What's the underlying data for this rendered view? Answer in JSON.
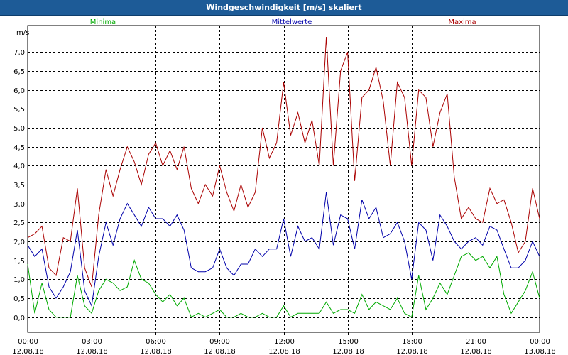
{
  "window": {
    "title": "Windgeschwindigkeit [m/s] skaliert"
  },
  "colors": {
    "background": "#ffffff",
    "titlebar": "#1d5b97",
    "grid": "#000000",
    "minima": "#00aa00",
    "mittelwerte": "#0000aa",
    "maxima": "#aa0000"
  },
  "chart_data": {
    "type": "line",
    "title": "Windgeschwindigkeit [m/s] skaliert",
    "ylabel": "m/s",
    "xlabel": "",
    "ylim": [
      -0.4,
      7.7
    ],
    "xlim": [
      0,
      24
    ],
    "y_ticks": [
      "0,0",
      "0,5",
      "1,0",
      "1,5",
      "2,0",
      "2,5",
      "3,0",
      "3,5",
      "4,0",
      "4,5",
      "5,0",
      "5,5",
      "6,0",
      "6,5",
      "7,0"
    ],
    "y_tick_values": [
      0,
      0.5,
      1,
      1.5,
      2,
      2.5,
      3,
      3.5,
      4,
      4.5,
      5,
      5.5,
      6,
      6.5,
      7
    ],
    "x_ticks": [
      {
        "time": "00:00",
        "date": "12.08.18"
      },
      {
        "time": "03:00",
        "date": "12.08.18"
      },
      {
        "time": "06:00",
        "date": "12.08.18"
      },
      {
        "time": "09:00",
        "date": "12.08.18"
      },
      {
        "time": "12:00",
        "date": "12.08.18"
      },
      {
        "time": "15:00",
        "date": "12.08.18"
      },
      {
        "time": "18:00",
        "date": "12.08.18"
      },
      {
        "time": "21:00",
        "date": "12.08.18"
      },
      {
        "time": "00:00",
        "date": "13.08.18"
      }
    ],
    "x_tick_hours": [
      0,
      3,
      6,
      9,
      12,
      15,
      18,
      21,
      24
    ],
    "grid": true,
    "legend": [
      "Minima",
      "Mittelwerte",
      "Maxima"
    ],
    "legend_position": "top",
    "x_unit": "hours",
    "series": [
      {
        "name": "Maxima",
        "color": "#aa0000",
        "x": [
          0,
          0.33,
          0.67,
          1,
          1.33,
          1.67,
          2,
          2.33,
          2.67,
          3,
          3.33,
          3.67,
          4,
          4.33,
          4.67,
          5,
          5.33,
          5.67,
          6,
          6.33,
          6.67,
          7,
          7.33,
          7.67,
          8,
          8.33,
          8.67,
          9,
          9.33,
          9.67,
          10,
          10.33,
          10.67,
          11,
          11.33,
          11.67,
          12,
          12.33,
          12.67,
          13,
          13.33,
          13.67,
          14,
          14.33,
          14.67,
          15,
          15.33,
          15.67,
          16,
          16.33,
          16.67,
          17,
          17.33,
          17.67,
          18,
          18.33,
          18.67,
          19,
          19.33,
          19.67,
          20,
          20.33,
          20.67,
          21,
          21.33,
          21.67,
          22,
          22.33,
          22.67,
          23,
          23.33,
          23.67,
          24
        ],
        "values": [
          2.1,
          2.2,
          2.4,
          1.3,
          1.1,
          2.1,
          2.0,
          3.4,
          1.3,
          0.8,
          2.7,
          3.9,
          3.2,
          3.9,
          4.5,
          4.1,
          3.5,
          4.3,
          4.6,
          4.0,
          4.4,
          3.9,
          4.5,
          3.4,
          3.0,
          3.5,
          3.2,
          4.0,
          3.3,
          2.8,
          3.5,
          2.9,
          3.3,
          5.0,
          4.2,
          4.6,
          6.2,
          4.8,
          5.4,
          4.6,
          5.2,
          4.0,
          7.4,
          4.0,
          6.5,
          7.0,
          3.6,
          5.8,
          6.0,
          6.6,
          5.7,
          4.0,
          6.2,
          5.8,
          4.0,
          6.0,
          5.8,
          4.5,
          5.4,
          5.9,
          3.7,
          2.6,
          2.9,
          2.6,
          2.5,
          3.4,
          3.0,
          3.1,
          2.5,
          1.7,
          2.0,
          3.4,
          2.6
        ]
      },
      {
        "name": "Mittelwerte",
        "color": "#0000aa",
        "x": [
          0,
          0.33,
          0.67,
          1,
          1.33,
          1.67,
          2,
          2.33,
          2.67,
          3,
          3.33,
          3.67,
          4,
          4.33,
          4.67,
          5,
          5.33,
          5.67,
          6,
          6.33,
          6.67,
          7,
          7.33,
          7.67,
          8,
          8.33,
          8.67,
          9,
          9.33,
          9.67,
          10,
          10.33,
          10.67,
          11,
          11.33,
          11.67,
          12,
          12.33,
          12.67,
          13,
          13.33,
          13.67,
          14,
          14.33,
          14.67,
          15,
          15.33,
          15.67,
          16,
          16.33,
          16.67,
          17,
          17.33,
          17.67,
          18,
          18.33,
          18.67,
          19,
          19.33,
          19.67,
          20,
          20.33,
          20.67,
          21,
          21.33,
          21.67,
          22,
          22.33,
          22.67,
          23,
          23.33,
          23.67,
          24
        ],
        "values": [
          1.9,
          1.6,
          1.8,
          0.8,
          0.5,
          0.8,
          1.2,
          2.3,
          0.7,
          0.3,
          1.6,
          2.5,
          1.9,
          2.6,
          3.0,
          2.7,
          2.4,
          2.9,
          2.6,
          2.6,
          2.4,
          2.7,
          2.3,
          1.3,
          1.2,
          1.2,
          1.3,
          1.8,
          1.3,
          1.1,
          1.4,
          1.4,
          1.8,
          1.6,
          1.8,
          1.8,
          2.6,
          1.6,
          2.4,
          2.0,
          2.1,
          1.8,
          3.3,
          1.9,
          2.7,
          2.6,
          1.8,
          3.1,
          2.6,
          2.9,
          2.1,
          2.2,
          2.5,
          2.0,
          1.0,
          2.5,
          2.3,
          1.5,
          2.7,
          2.4,
          2.0,
          1.8,
          2.0,
          2.1,
          1.9,
          2.4,
          2.3,
          1.8,
          1.3,
          1.3,
          1.5,
          2.0,
          1.6
        ]
      },
      {
        "name": "Minima",
        "color": "#00aa00",
        "x": [
          0,
          0.33,
          0.67,
          1,
          1.33,
          1.67,
          2,
          2.33,
          2.67,
          3,
          3.33,
          3.67,
          4,
          4.33,
          4.67,
          5,
          5.33,
          5.67,
          6,
          6.33,
          6.67,
          7,
          7.33,
          7.67,
          8,
          8.33,
          8.67,
          9,
          9.33,
          9.67,
          10,
          10.33,
          10.67,
          11,
          11.33,
          11.67,
          12,
          12.33,
          12.67,
          13,
          13.33,
          13.67,
          14,
          14.33,
          14.67,
          15,
          15.33,
          15.67,
          16,
          16.33,
          16.67,
          17,
          17.33,
          17.67,
          18,
          18.33,
          18.67,
          19,
          19.33,
          19.67,
          20,
          20.33,
          20.67,
          21,
          21.33,
          21.67,
          22,
          22.33,
          22.67,
          23,
          23.33,
          23.67,
          24
        ],
        "values": [
          1.4,
          0.1,
          0.9,
          0.2,
          0.0,
          0.0,
          0.0,
          1.1,
          0.3,
          0.1,
          0.7,
          1.0,
          0.9,
          0.7,
          0.8,
          1.5,
          1.0,
          0.9,
          0.6,
          0.4,
          0.6,
          0.3,
          0.5,
          0.0,
          0.1,
          0.0,
          0.1,
          0.2,
          0.0,
          0.0,
          0.1,
          0.0,
          0.0,
          0.1,
          0.0,
          0.0,
          0.3,
          0.0,
          0.1,
          0.1,
          0.1,
          0.1,
          0.4,
          0.1,
          0.2,
          0.2,
          0.1,
          0.6,
          0.2,
          0.4,
          0.3,
          0.2,
          0.5,
          0.1,
          0.0,
          1.1,
          0.2,
          0.5,
          0.9,
          0.6,
          1.1,
          1.6,
          1.7,
          1.5,
          1.6,
          1.3,
          1.6,
          0.6,
          0.1,
          0.4,
          0.7,
          1.2,
          0.5
        ]
      }
    ]
  }
}
